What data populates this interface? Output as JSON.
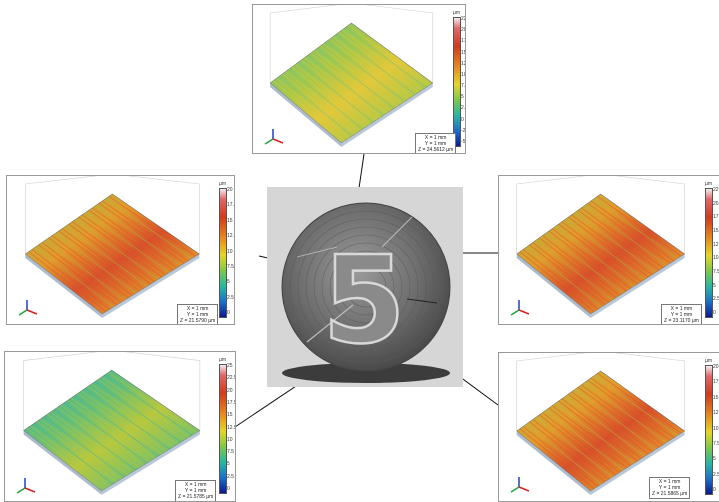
{
  "panels": [
    {
      "id": "top",
      "unit": "µm",
      "ticks": [
        "22.5",
        "20",
        "17.5",
        "15",
        "12.5",
        "10",
        "7.5",
        "5",
        "2.5",
        "0",
        "-2.5",
        "-5"
      ],
      "legend": [
        "X = 1 mm",
        "Y = 1 mm",
        "Z = 24.5612 µm"
      ],
      "surface_palette": [
        "#e2c83a",
        "#a6c84a",
        "#5fc08a"
      ]
    },
    {
      "id": "left-upper",
      "unit": "µm",
      "ticks": [
        "20",
        "17.5",
        "15",
        "12.5",
        "10",
        "7.5",
        "5",
        "2.5",
        "0"
      ],
      "legend": [
        "X = 1 mm",
        "Y = 1 mm",
        "Z = 21.5790 µm"
      ],
      "surface_palette": [
        "#d8502a",
        "#e49a2a",
        "#9ac44a"
      ]
    },
    {
      "id": "right-upper",
      "unit": "µm",
      "ticks": [
        "22.5",
        "20",
        "17.5",
        "15",
        "12.5",
        "10",
        "7.5",
        "5",
        "2.5",
        "0"
      ],
      "legend": [
        "X = 1 mm",
        "Y = 1 mm",
        "Z = 23.1170 µm"
      ],
      "surface_palette": [
        "#d8502a",
        "#e49a2a",
        "#9ac44a"
      ]
    },
    {
      "id": "left-lower",
      "unit": "µm",
      "ticks": [
        "25",
        "22.5",
        "20",
        "17.5",
        "15",
        "12.5",
        "10",
        "7.5",
        "5",
        "2.5",
        "0"
      ],
      "legend": [
        "X = 1 mm",
        "Y = 1 mm",
        "Z = 21.5785 µm"
      ],
      "surface_palette": [
        "#b8c83e",
        "#6cc072",
        "#2fb0b0"
      ]
    },
    {
      "id": "right-lower",
      "unit": "µm",
      "ticks": [
        "20",
        "17.5",
        "15",
        "12.5",
        "10",
        "7.5",
        "5",
        "2.5",
        "0"
      ],
      "legend": [
        "X = 1 mm",
        "Y = 1 mm",
        "Z = 21.5865 µm"
      ],
      "surface_palette": [
        "#d8502a",
        "#e49a2a",
        "#a6c84a"
      ]
    }
  ],
  "photo": {
    "embossed_digit": "5"
  }
}
